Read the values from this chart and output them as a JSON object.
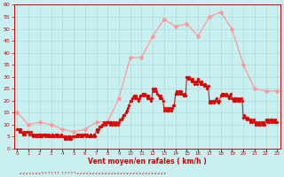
{
  "xlabel": "Vent moyen/en rafales ( km/h )",
  "bg_color": "#c8f0f0",
  "grid_color": "#aadddd",
  "line1_color": "#ff9999",
  "line2_color": "#dd0000",
  "ylim": [
    0,
    60
  ],
  "yticks": [
    0,
    5,
    10,
    15,
    20,
    25,
    30,
    35,
    40,
    45,
    50,
    55,
    60
  ],
  "hours": [
    0,
    1,
    2,
    3,
    4,
    5,
    6,
    7,
    8,
    9,
    10,
    11,
    12,
    13,
    14,
    15,
    16,
    17,
    18,
    19,
    20,
    21,
    22,
    23
  ],
  "rafales": [
    15,
    10,
    11,
    10,
    8,
    7,
    8,
    11,
    11,
    21,
    38,
    38,
    47,
    54,
    51,
    52,
    47,
    55,
    57,
    50,
    35,
    25,
    24,
    24
  ],
  "moyen_x": [
    0.0,
    0.1,
    0.2,
    0.3,
    0.4,
    0.5,
    0.6,
    0.7,
    0.8,
    0.9,
    1.0,
    1.1,
    1.2,
    1.3,
    1.4,
    1.5,
    1.6,
    1.7,
    1.8,
    1.9,
    2.0,
    2.1,
    2.2,
    2.3,
    2.4,
    2.5,
    2.6,
    2.7,
    2.8,
    2.9,
    3.0,
    3.1,
    3.2,
    3.3,
    3.4,
    3.5,
    3.6,
    3.7,
    3.8,
    3.9,
    4.0,
    4.1,
    4.2,
    4.3,
    4.4,
    4.5,
    4.6,
    4.7,
    4.8,
    4.9,
    5.0,
    5.1,
    5.2,
    5.3,
    5.4,
    5.5,
    5.6,
    5.7,
    5.8,
    5.9,
    6.0,
    6.1,
    6.2,
    6.3,
    6.4,
    6.5,
    6.6,
    6.7,
    6.8,
    6.9,
    7.0,
    7.1,
    7.2,
    7.3,
    7.4,
    7.5,
    7.6,
    7.7,
    7.8,
    7.9,
    8.0,
    8.1,
    8.2,
    8.3,
    8.4,
    8.5,
    8.6,
    8.7,
    8.8,
    8.9,
    9.0,
    9.1,
    9.2,
    9.3,
    9.4,
    9.5,
    9.6,
    9.7,
    9.8,
    9.9,
    10.0,
    10.1,
    10.2,
    10.3,
    10.4,
    10.5,
    10.6,
    10.7,
    10.8,
    10.9,
    11.0,
    11.1,
    11.2,
    11.3,
    11.4,
    11.5,
    11.6,
    11.7,
    11.8,
    11.9,
    12.0,
    12.1,
    12.2,
    12.3,
    12.4,
    12.5,
    12.6,
    12.7,
    12.8,
    12.9,
    13.0,
    13.1,
    13.2,
    13.3,
    13.4,
    13.5,
    13.6,
    13.7,
    13.8,
    13.9,
    14.0,
    14.1,
    14.2,
    14.3,
    14.4,
    14.5,
    14.6,
    14.7,
    14.8,
    14.9,
    15.0,
    15.1,
    15.2,
    15.3,
    15.4,
    15.5,
    15.6,
    15.7,
    15.8,
    15.9,
    16.0,
    16.1,
    16.2,
    16.3,
    16.4,
    16.5,
    16.6,
    16.7,
    16.8,
    16.9,
    17.0,
    17.1,
    17.2,
    17.3,
    17.4,
    17.5,
    17.6,
    17.7,
    17.8,
    17.9,
    18.0,
    18.1,
    18.2,
    18.3,
    18.4,
    18.5,
    18.6,
    18.7,
    18.8,
    18.9,
    19.0,
    19.1,
    19.2,
    19.3,
    19.4,
    19.5,
    19.6,
    19.7,
    19.8,
    19.9,
    20.0,
    20.1,
    20.2,
    20.3,
    20.4,
    20.5,
    20.6,
    20.7,
    20.8,
    20.9,
    21.0,
    21.1,
    21.2,
    21.3,
    21.4,
    21.5,
    21.6,
    21.7,
    21.8,
    21.9,
    22.0,
    22.1,
    22.2,
    22.3,
    22.4,
    22.5,
    22.6,
    22.7,
    22.8,
    22.9,
    23.0
  ],
  "moyen_y": [
    8,
    8,
    7,
    8,
    7,
    6,
    7,
    6,
    7,
    7,
    7,
    6,
    7,
    6,
    5,
    6,
    5,
    6,
    5,
    6,
    5,
    6,
    5,
    6,
    6,
    5,
    6,
    5,
    6,
    5,
    5,
    6,
    5,
    5,
    6,
    5,
    6,
    5,
    5,
    6,
    5,
    5,
    4,
    5,
    4,
    5,
    4,
    5,
    4,
    5,
    5,
    5,
    5,
    6,
    5,
    6,
    5,
    6,
    5,
    6,
    6,
    5,
    6,
    5,
    5,
    6,
    5,
    5,
    6,
    5,
    8,
    7,
    8,
    9,
    9,
    10,
    10,
    11,
    10,
    11,
    11,
    11,
    10,
    11,
    10,
    11,
    10,
    10,
    11,
    10,
    11,
    12,
    12,
    13,
    14,
    14,
    15,
    16,
    17,
    18,
    20,
    20,
    21,
    22,
    21,
    22,
    21,
    20,
    21,
    22,
    22,
    23,
    22,
    23,
    22,
    21,
    22,
    21,
    20,
    21,
    25,
    24,
    25,
    24,
    23,
    22,
    21,
    22,
    21,
    20,
    16,
    17,
    16,
    17,
    16,
    17,
    16,
    17,
    18,
    18,
    23,
    24,
    23,
    24,
    23,
    24,
    23,
    22,
    23,
    22,
    30,
    29,
    30,
    29,
    28,
    29,
    28,
    27,
    28,
    27,
    29,
    28,
    27,
    28,
    27,
    26,
    27,
    26,
    25,
    26,
    19,
    20,
    19,
    20,
    19,
    20,
    21,
    20,
    19,
    20,
    22,
    23,
    22,
    23,
    22,
    23,
    22,
    21,
    22,
    23,
    21,
    20,
    21,
    20,
    21,
    20,
    21,
    20,
    21,
    20,
    13,
    14,
    13,
    12,
    13,
    12,
    11,
    12,
    11,
    12,
    11,
    10,
    11,
    10,
    11,
    10,
    11,
    10,
    11,
    10,
    12,
    11,
    12,
    11,
    12,
    11,
    12,
    11,
    12,
    11,
    11
  ]
}
